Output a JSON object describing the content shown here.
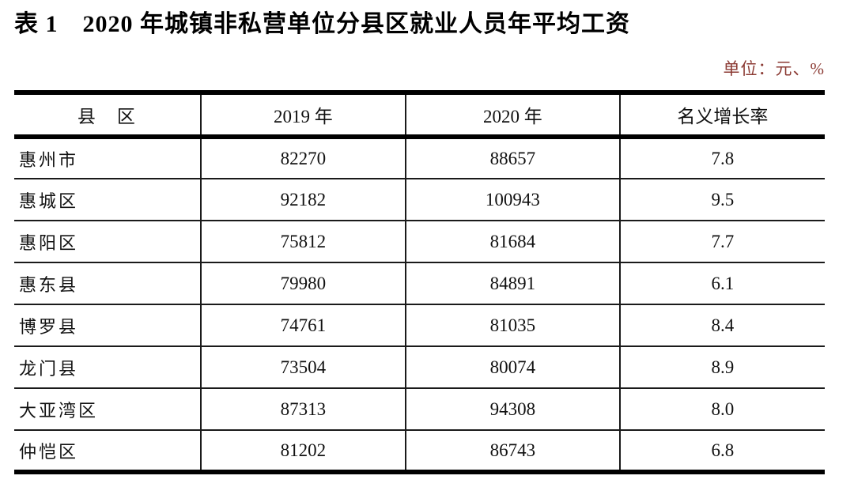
{
  "page": {
    "title": "表 1　2020 年城镇非私营单位分县区就业人员年平均工资",
    "unit_note": "单位：元、%",
    "unit_note_color": "#8b3a33"
  },
  "table": {
    "columns": [
      "县　区",
      "2019 年",
      "2020 年",
      "名义增长率"
    ],
    "rows": [
      {
        "region": "惠州市",
        "y2019": "82270",
        "y2020": "88657",
        "growth": "7.8"
      },
      {
        "region": "惠城区",
        "y2019": "92182",
        "y2020": "100943",
        "growth": "9.5"
      },
      {
        "region": "惠阳区",
        "y2019": "75812",
        "y2020": "81684",
        "growth": "7.7"
      },
      {
        "region": "惠东县",
        "y2019": "79980",
        "y2020": "84891",
        "growth": "6.1"
      },
      {
        "region": "博罗县",
        "y2019": "74761",
        "y2020": "81035",
        "growth": "8.4"
      },
      {
        "region": "龙门县",
        "y2019": "73504",
        "y2020": "80074",
        "growth": "8.9"
      },
      {
        "region": "大亚湾区",
        "y2019": "87313",
        "y2020": "94308",
        "growth": "8.0"
      },
      {
        "region": "仲恺区",
        "y2019": "81202",
        "y2020": "86743",
        "growth": "6.8"
      }
    ]
  }
}
